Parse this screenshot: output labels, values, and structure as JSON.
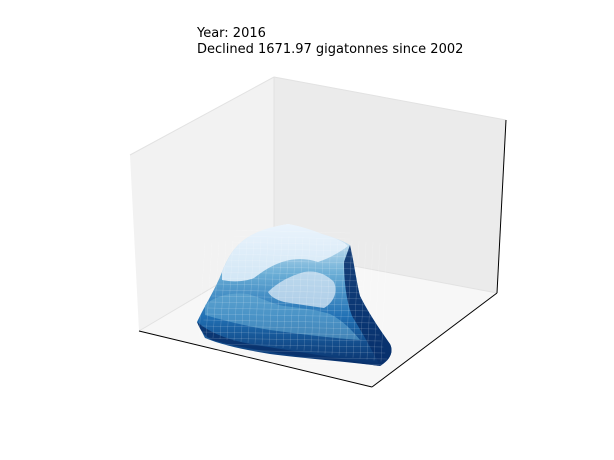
{
  "chart_data": {
    "type": "3d-surface",
    "title_lines": [
      "Year: 2016",
      "Declined 1671.97 gigatonnes since 2002"
    ],
    "year": 2016,
    "decline_gigatonnes": 1671.97,
    "since_year": 2002,
    "colormap": "Blues",
    "axes_visible": false,
    "grid": false,
    "xlabel": "",
    "ylabel": "",
    "zlabel": ""
  },
  "colors": {
    "pane_left": "#f2f2f2",
    "pane_back": "#ebebeb",
    "pane_floor": "#f7f7f7",
    "surface_low": "#08306b",
    "surface_mid": "#3f8fc5",
    "surface_high": "#f7fbff"
  }
}
